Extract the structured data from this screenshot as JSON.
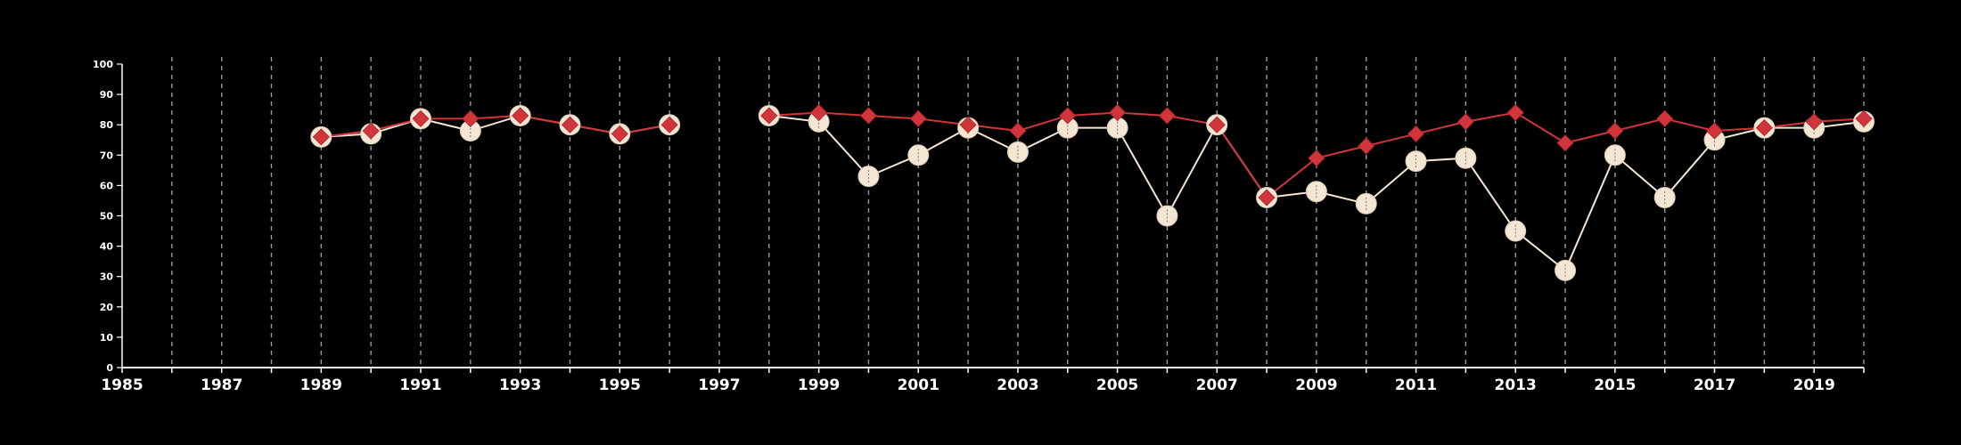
{
  "chart_data": {
    "type": "line",
    "title": "",
    "xlabel": "",
    "ylabel": "",
    "xlim": [
      1985,
      2020
    ],
    "ylim": [
      0,
      100
    ],
    "grid": "vertical dashed lines at each year",
    "legend": "none",
    "y_ticks": [
      "0",
      "10",
      "20",
      "30",
      "40",
      "50",
      "60",
      "70",
      "80",
      "90",
      "100"
    ],
    "x_tick_labels": [
      "1985",
      "1987",
      "1989",
      "1991",
      "1993",
      "1995",
      "1997",
      "1999",
      "2001",
      "2003",
      "2005",
      "2007",
      "2009",
      "2011",
      "2013",
      "2015",
      "2017",
      "2019"
    ],
    "colors": {
      "background": "#000000",
      "axis": "#ffffff",
      "grid": "#9a9a9a",
      "series_circle": "#f5e6d3",
      "series_diamond": "#d1343a"
    },
    "series": [
      {
        "marker": "circle",
        "color": "#f5e6d3",
        "x": [
          1989,
          1990,
          1991,
          1992,
          1993,
          1994,
          1995,
          1996,
          1998,
          1999,
          2000,
          2001,
          2002,
          2003,
          2004,
          2005,
          2006,
          2007,
          2008,
          2009,
          2010,
          2011,
          2012,
          2013,
          2014,
          2015,
          2016,
          2017,
          2018,
          2019,
          2020
        ],
        "values": [
          76,
          77,
          82,
          78,
          83,
          80,
          77,
          80,
          83,
          81,
          63,
          70,
          79,
          71,
          79,
          79,
          50,
          80,
          56,
          58,
          54,
          68,
          69,
          45,
          32,
          70,
          56,
          75,
          79,
          79,
          81
        ]
      },
      {
        "marker": "diamond",
        "color": "#d1343a",
        "x": [
          1989,
          1990,
          1991,
          1992,
          1993,
          1994,
          1995,
          1996,
          1998,
          1999,
          2000,
          2001,
          2002,
          2003,
          2004,
          2005,
          2006,
          2007,
          2008,
          2009,
          2010,
          2011,
          2012,
          2013,
          2014,
          2015,
          2016,
          2017,
          2018,
          2019,
          2020
        ],
        "values": [
          76,
          78,
          82,
          82,
          83,
          80,
          77,
          80,
          83,
          84,
          83,
          82,
          80,
          78,
          83,
          84,
          83,
          80,
          56,
          69,
          73,
          77,
          81,
          84,
          74,
          78,
          82,
          78,
          79,
          81,
          82
        ]
      }
    ]
  }
}
